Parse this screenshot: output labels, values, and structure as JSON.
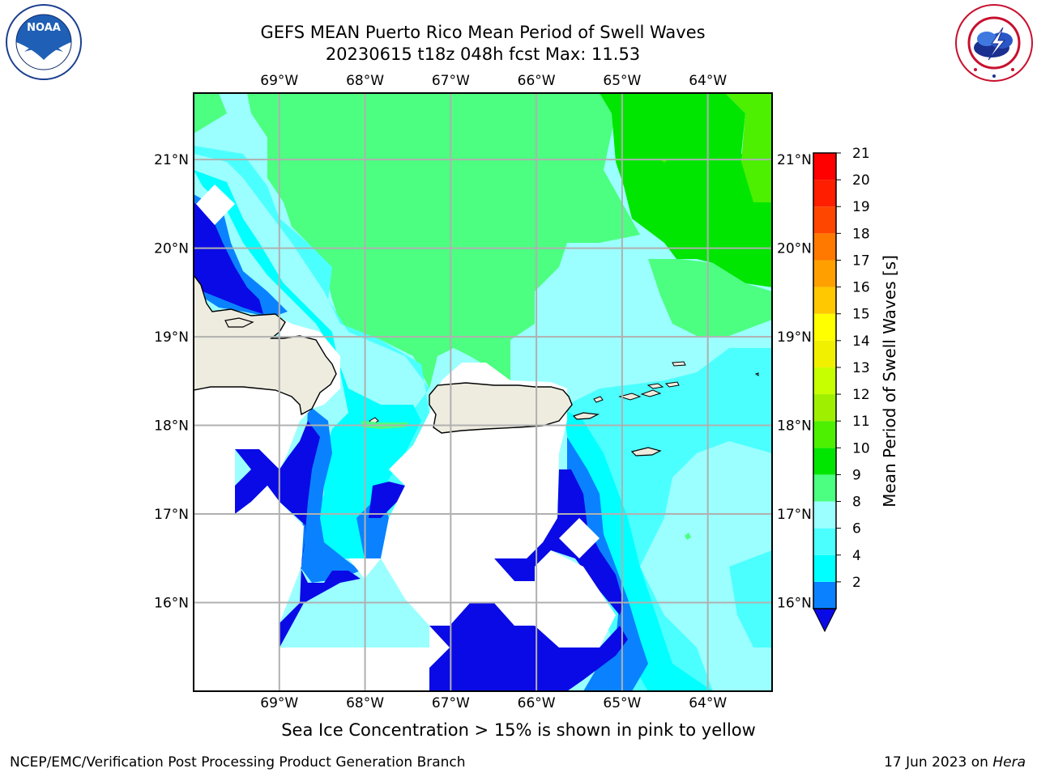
{
  "title": {
    "line1": "GEFS MEAN Puerto Rico Mean Period of Swell Waves",
    "line2": "20230615 t18z 048h fcst   Max: 11.53"
  },
  "logos": {
    "left": {
      "icon": "noaa-logo-icon",
      "text": "NOAA",
      "ring_text": "NATIONAL OCEANIC AND ATMOSPHERIC ADMINISTRATION · U.S. DEPARTMENT OF COMMERCE"
    },
    "right": {
      "icon": "nws-logo-icon",
      "ring_text": "NATIONAL WEATHER SERVICE"
    }
  },
  "map": {
    "lon_ticks": [
      "69°W",
      "68°W",
      "67°W",
      "66°W",
      "65°W",
      "64°W"
    ],
    "lat_ticks": [
      "21°N",
      "20°N",
      "19°N",
      "18°N",
      "17°N",
      "16°N"
    ],
    "lon_range": [
      -70.0,
      -63.25
    ],
    "lat_range": [
      15.0,
      21.75
    ],
    "grid": true,
    "land_color": "#eeecdf",
    "ocean_blank_color": "#ffffff"
  },
  "colorbar": {
    "label": "Mean Period of Swell Waves [s]",
    "ticks": [
      "21",
      "20",
      "19",
      "18",
      "17",
      "16",
      "15",
      "14",
      "13",
      "12",
      "11",
      "10",
      "9",
      "8",
      "6",
      "4",
      "2"
    ],
    "levels": [
      2,
      4,
      6,
      8,
      9,
      10,
      11,
      12,
      13,
      14,
      15,
      16,
      17,
      18,
      19,
      20,
      21
    ],
    "colors": [
      "#0a0ae6",
      "#0a82ff",
      "#00ffff",
      "#4cffff",
      "#9bffff",
      "#4cff80",
      "#00e600",
      "#4cf000",
      "#9ef000",
      "#c8ff00",
      "#f0f000",
      "#ffff00",
      "#ffc800",
      "#ffa000",
      "#ff7800",
      "#ff4600",
      "#ff1e00",
      "#ff0000"
    ],
    "extend": "min"
  },
  "note": "Sea Ice Concentration > 15% is shown in pink to yellow",
  "footer": {
    "left": "NCEP/EMC/Verification Post Processing Product Generation Branch",
    "right_date": "17 Jun 2023 on ",
    "right_machine": "Hera"
  }
}
